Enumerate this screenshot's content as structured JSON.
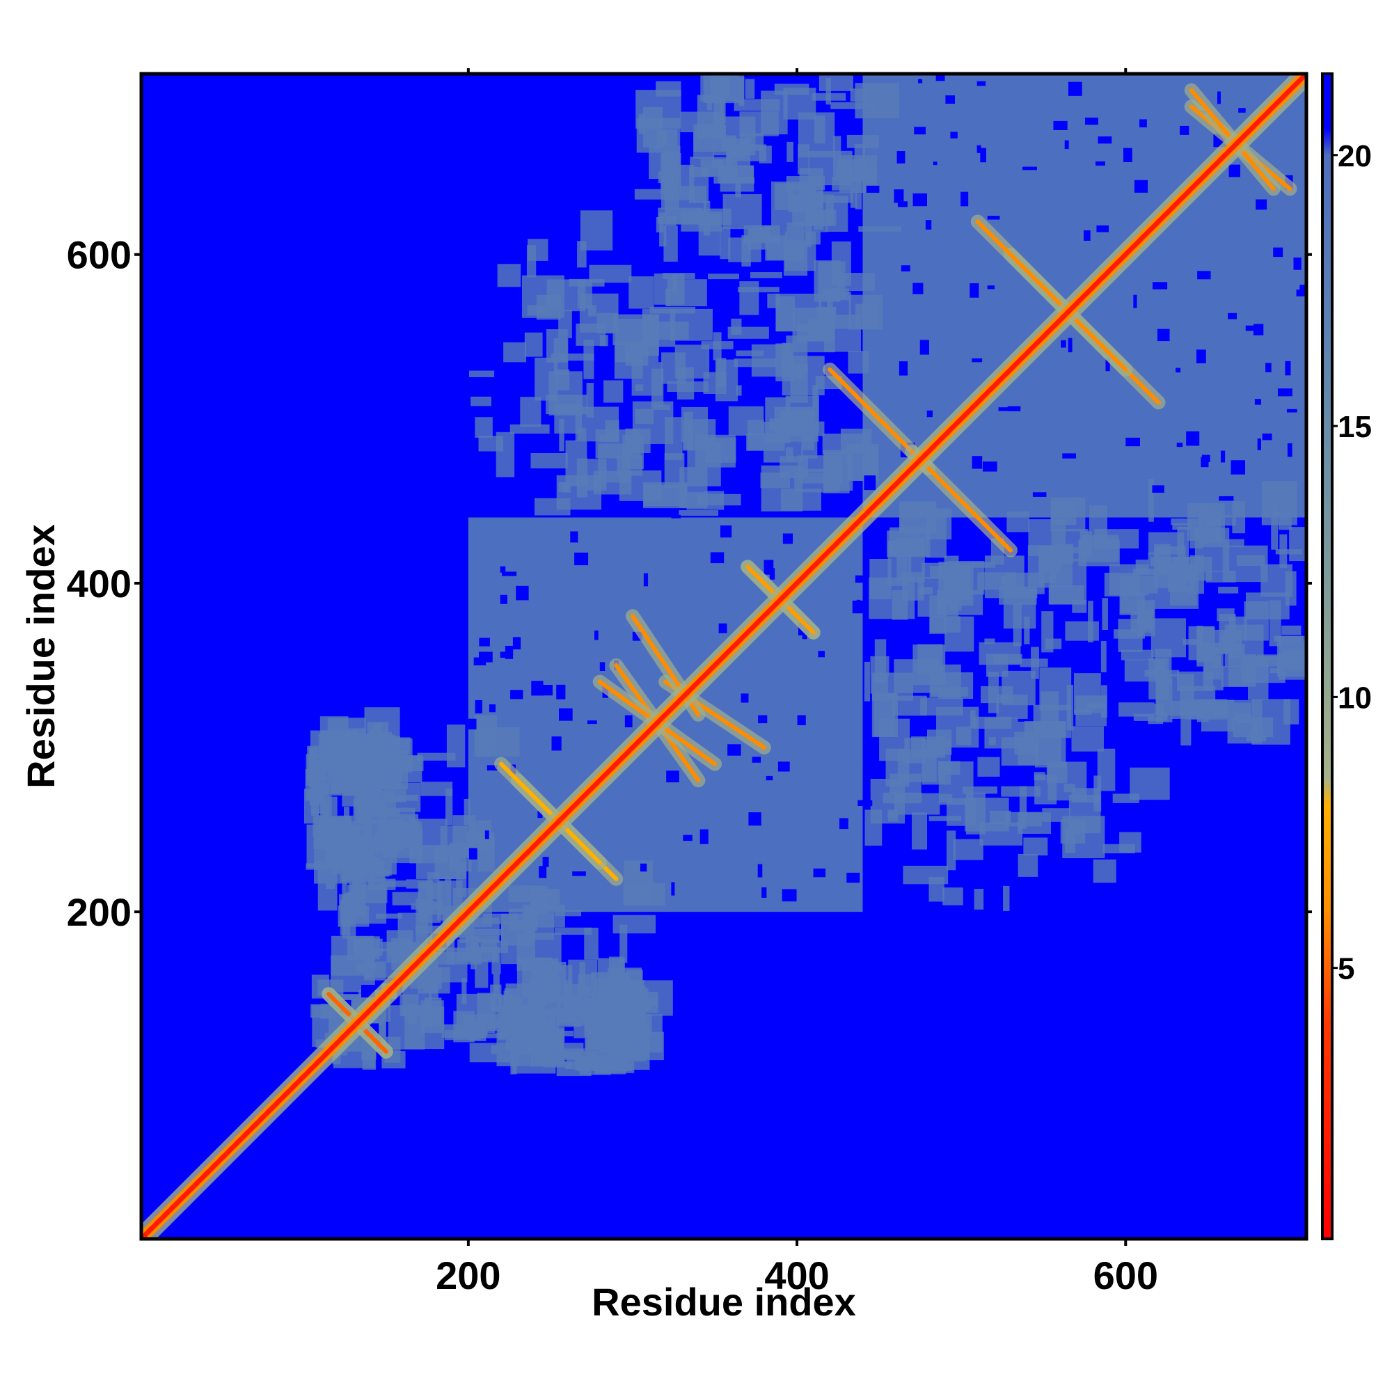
{
  "chart_data": {
    "type": "heatmap",
    "title": "",
    "xlabel": "Residue index",
    "ylabel": "Residue index",
    "xlim": [
      1,
      710
    ],
    "ylim": [
      1,
      710
    ],
    "x_ticks": [
      200,
      400,
      600
    ],
    "y_ticks": [
      200,
      400,
      600
    ],
    "x_tick_labels": [
      "200",
      "400",
      "600"
    ],
    "y_tick_labels": [
      "200",
      "400",
      "600"
    ],
    "colorbar": {
      "range": [
        0,
        21.5
      ],
      "ticks": [
        5,
        10,
        15,
        20
      ],
      "tick_labels": [
        "5",
        "10",
        "15",
        "20"
      ],
      "stops": [
        {
          "value": 0,
          "color": "#ff0000"
        },
        {
          "value": 4,
          "color": "#ff3a00"
        },
        {
          "value": 6,
          "color": "#ff8c00"
        },
        {
          "value": 8,
          "color": "#ffb000"
        },
        {
          "value": 8.5,
          "color": "#a6b38a"
        },
        {
          "value": 12,
          "color": "#7f9c99"
        },
        {
          "value": 16,
          "color": "#5f88b0"
        },
        {
          "value": 20,
          "color": "#4f6fbf"
        },
        {
          "value": 20.5,
          "color": "#0000ff"
        },
        {
          "value": 21.5,
          "color": "#0000ff"
        }
      ]
    },
    "background_value": 21,
    "background_color": "#0000ff",
    "diagonal": {
      "start": 1,
      "end": 710,
      "value": 2
    },
    "domains": [
      {
        "range": [
          115,
          150
        ],
        "value": 16
      },
      {
        "range": [
          200,
          440
        ],
        "value": 17
      },
      {
        "range": [
          440,
          710
        ],
        "value": 17
      }
    ],
    "contact_patches": [
      {
        "x": [
          440,
          600
        ],
        "y": [
          230,
          420
        ],
        "value": 18
      },
      {
        "x": [
          200,
          440
        ],
        "y": [
          440,
          620
        ],
        "value": 18
      },
      {
        "x": [
          115,
          300
        ],
        "y": [
          100,
          210
        ],
        "value": 18
      },
      {
        "x": [
          210,
          300
        ],
        "y": [
          100,
          150
        ],
        "value": 18
      },
      {
        "x": [
          600,
          700
        ],
        "y": [
          300,
          440
        ],
        "value": 18
      }
    ],
    "strands": [
      {
        "x": [
          115,
          150
        ],
        "y": [
          150,
          115
        ],
        "value": 5
      },
      {
        "x": [
          420,
          480
        ],
        "y": [
          530,
          470
        ],
        "value": 6
      },
      {
        "x": [
          530,
          620
        ],
        "y": [
          600,
          510
        ],
        "value": 6
      },
      {
        "x": [
          640,
          700
        ],
        "y": [
          690,
          640
        ],
        "value": 6
      },
      {
        "x": [
          320,
          380
        ],
        "y": [
          340,
          300
        ],
        "value": 6
      },
      {
        "x": [
          290,
          340
        ],
        "y": [
          350,
          280
        ],
        "value": 6
      },
      {
        "x": [
          370,
          410
        ],
        "y": [
          410,
          370
        ],
        "value": 7
      },
      {
        "x": [
          230,
          290
        ],
        "y": [
          280,
          220
        ],
        "value": 8
      }
    ]
  }
}
